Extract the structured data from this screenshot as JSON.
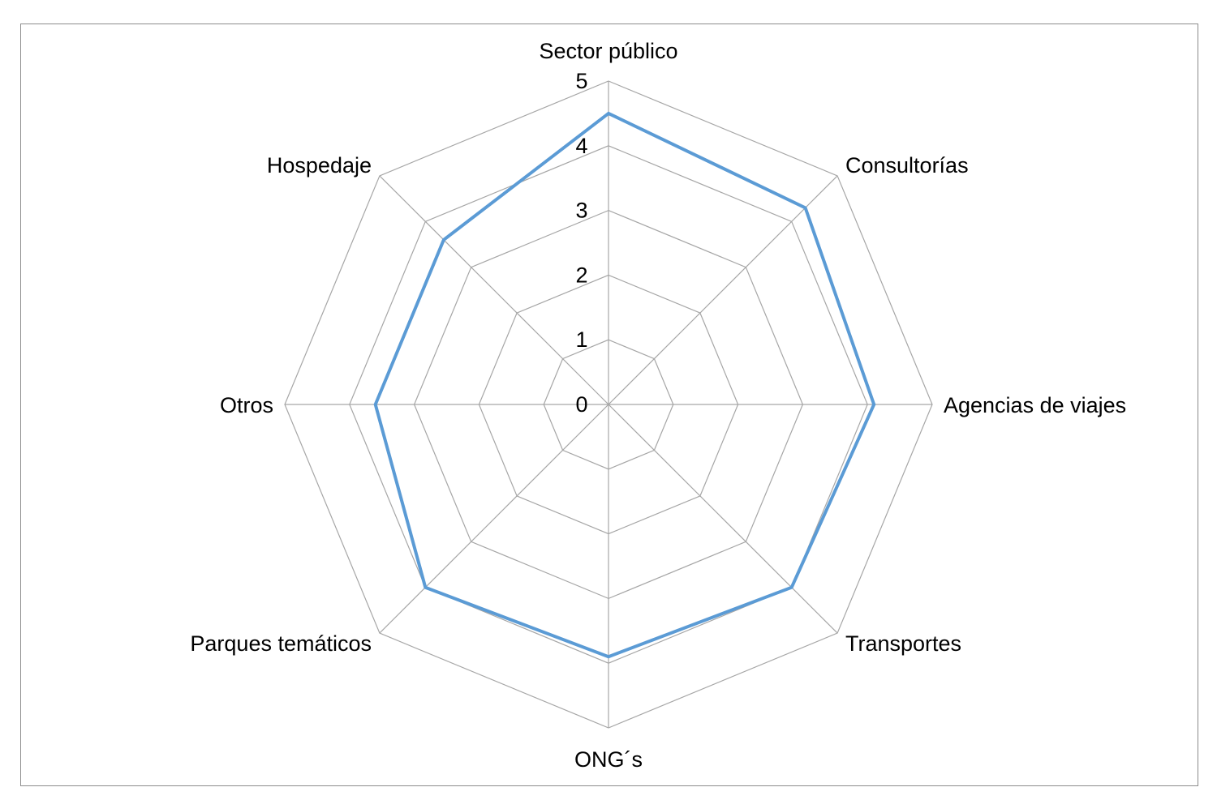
{
  "chart_data": {
    "type": "radar",
    "title": "",
    "categories": [
      "Sector público",
      "Consultorías",
      "Agencias de viajes",
      "Transportes",
      "ONG´s",
      "Parques temáticos",
      "Otros",
      "Hospedaje"
    ],
    "series": [
      {
        "values": [
          4.5,
          4.3,
          4.1,
          4.0,
          3.9,
          4.0,
          3.6,
          3.6
        ],
        "color": "#5b9bd5"
      }
    ],
    "radial_axis": {
      "min": 0,
      "max": 5,
      "ticks": [
        "0",
        "1",
        "2",
        "3",
        "4",
        "5"
      ]
    },
    "grid": true,
    "legend": "none"
  }
}
